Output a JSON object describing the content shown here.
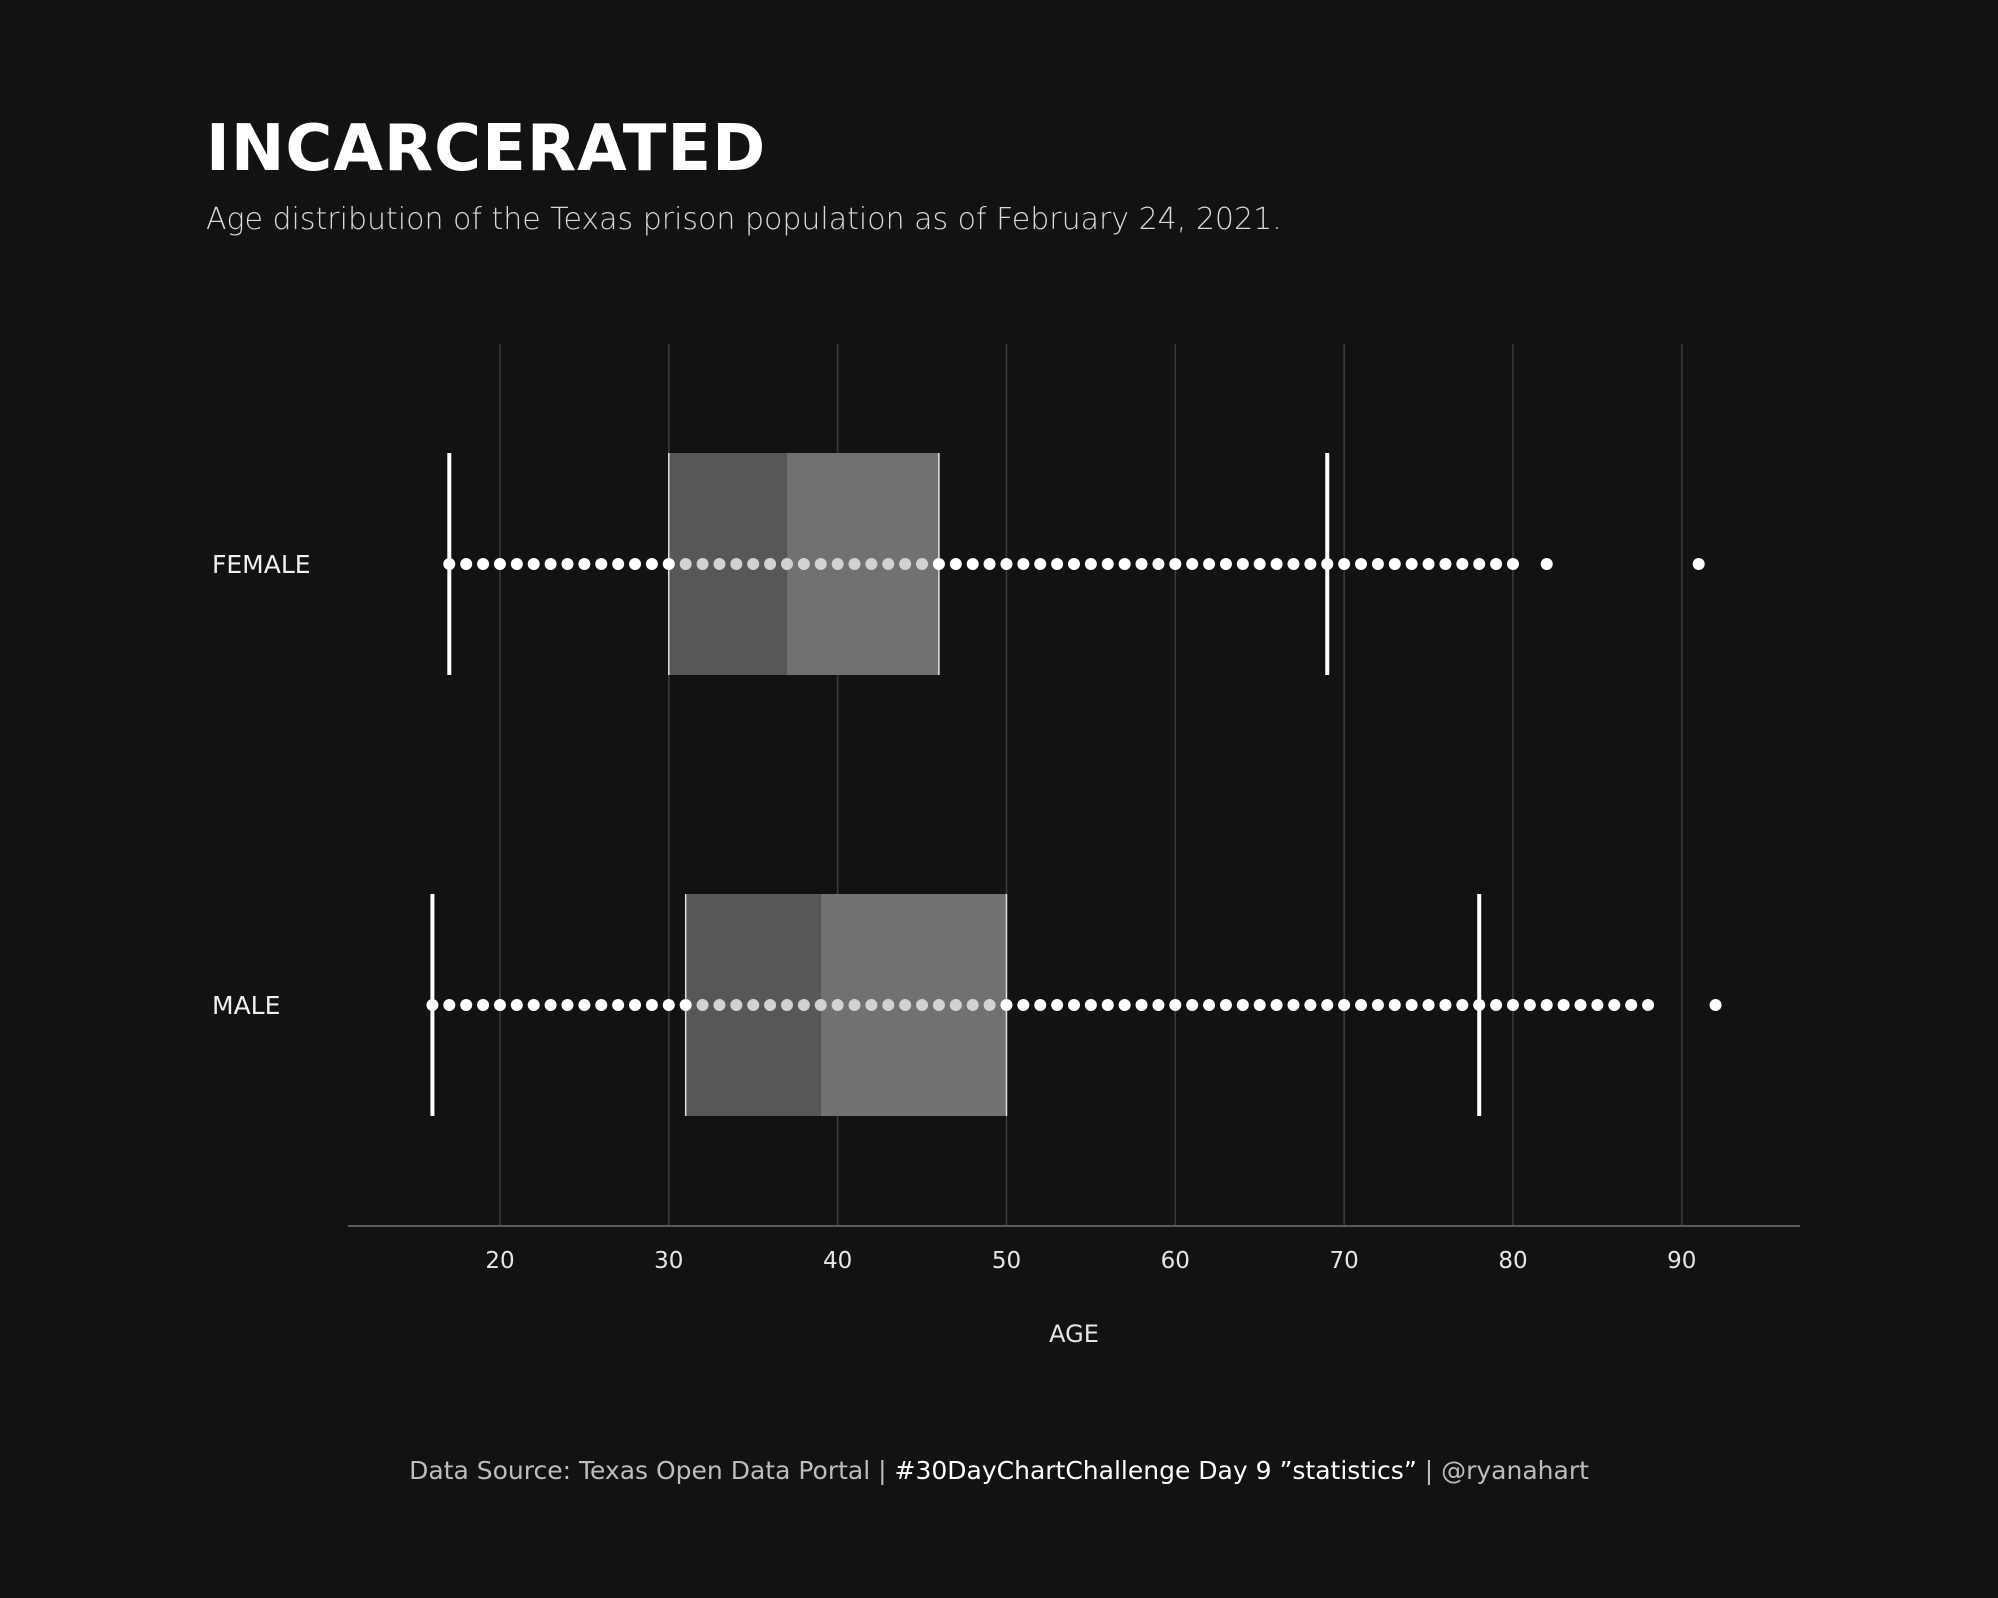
{
  "title": "INCARCERATED",
  "subtitle": "Age distribution of the Texas prison population as of February 24, 2021.",
  "footer": {
    "source": "Data Source: Texas Open Data Portal",
    "sep1": " | ",
    "challenge": "#30DayChartChallenge Day 9 ”statistics”",
    "sep2": " | ",
    "handle": "@ryanahart"
  },
  "colors": {
    "background": "#121212",
    "grid": "#3c3c3c",
    "box_lower": "#575757",
    "box_upper": "#717171",
    "dots": "#ffffff",
    "dots_in_box": "#d2d2d2"
  },
  "chart_data": {
    "type": "box-and-dot",
    "xlabel": "AGE",
    "xlim": [
      11,
      97
    ],
    "xticks": [
      20,
      30,
      40,
      50,
      60,
      70,
      80,
      90
    ],
    "grid": "vertical",
    "categories": [
      "FEMALE",
      "MALE"
    ],
    "series": [
      {
        "name": "FEMALE",
        "whisker_low": 17,
        "q1": 30,
        "median": 37,
        "q3": 46,
        "whisker_high": 69,
        "ages": [
          17,
          18,
          19,
          20,
          21,
          22,
          23,
          24,
          25,
          26,
          27,
          28,
          29,
          30,
          31,
          32,
          33,
          34,
          35,
          36,
          37,
          38,
          39,
          40,
          41,
          42,
          43,
          44,
          45,
          46,
          47,
          48,
          49,
          50,
          51,
          52,
          53,
          54,
          55,
          56,
          57,
          58,
          59,
          60,
          61,
          62,
          63,
          64,
          65,
          66,
          67,
          68,
          69,
          70,
          71,
          72,
          73,
          74,
          75,
          76,
          77,
          78,
          79,
          80,
          82,
          91
        ]
      },
      {
        "name": "MALE",
        "whisker_low": 16,
        "q1": 31,
        "median": 39,
        "q3": 50,
        "whisker_high": 78,
        "ages": [
          16,
          17,
          18,
          19,
          20,
          21,
          22,
          23,
          24,
          25,
          26,
          27,
          28,
          29,
          30,
          31,
          32,
          33,
          34,
          35,
          36,
          37,
          38,
          39,
          40,
          41,
          42,
          43,
          44,
          45,
          46,
          47,
          48,
          49,
          50,
          51,
          52,
          53,
          54,
          55,
          56,
          57,
          58,
          59,
          60,
          61,
          62,
          63,
          64,
          65,
          66,
          67,
          68,
          69,
          70,
          71,
          72,
          73,
          74,
          75,
          76,
          77,
          78,
          79,
          80,
          81,
          82,
          83,
          84,
          85,
          86,
          87,
          88,
          92
        ]
      }
    ]
  }
}
